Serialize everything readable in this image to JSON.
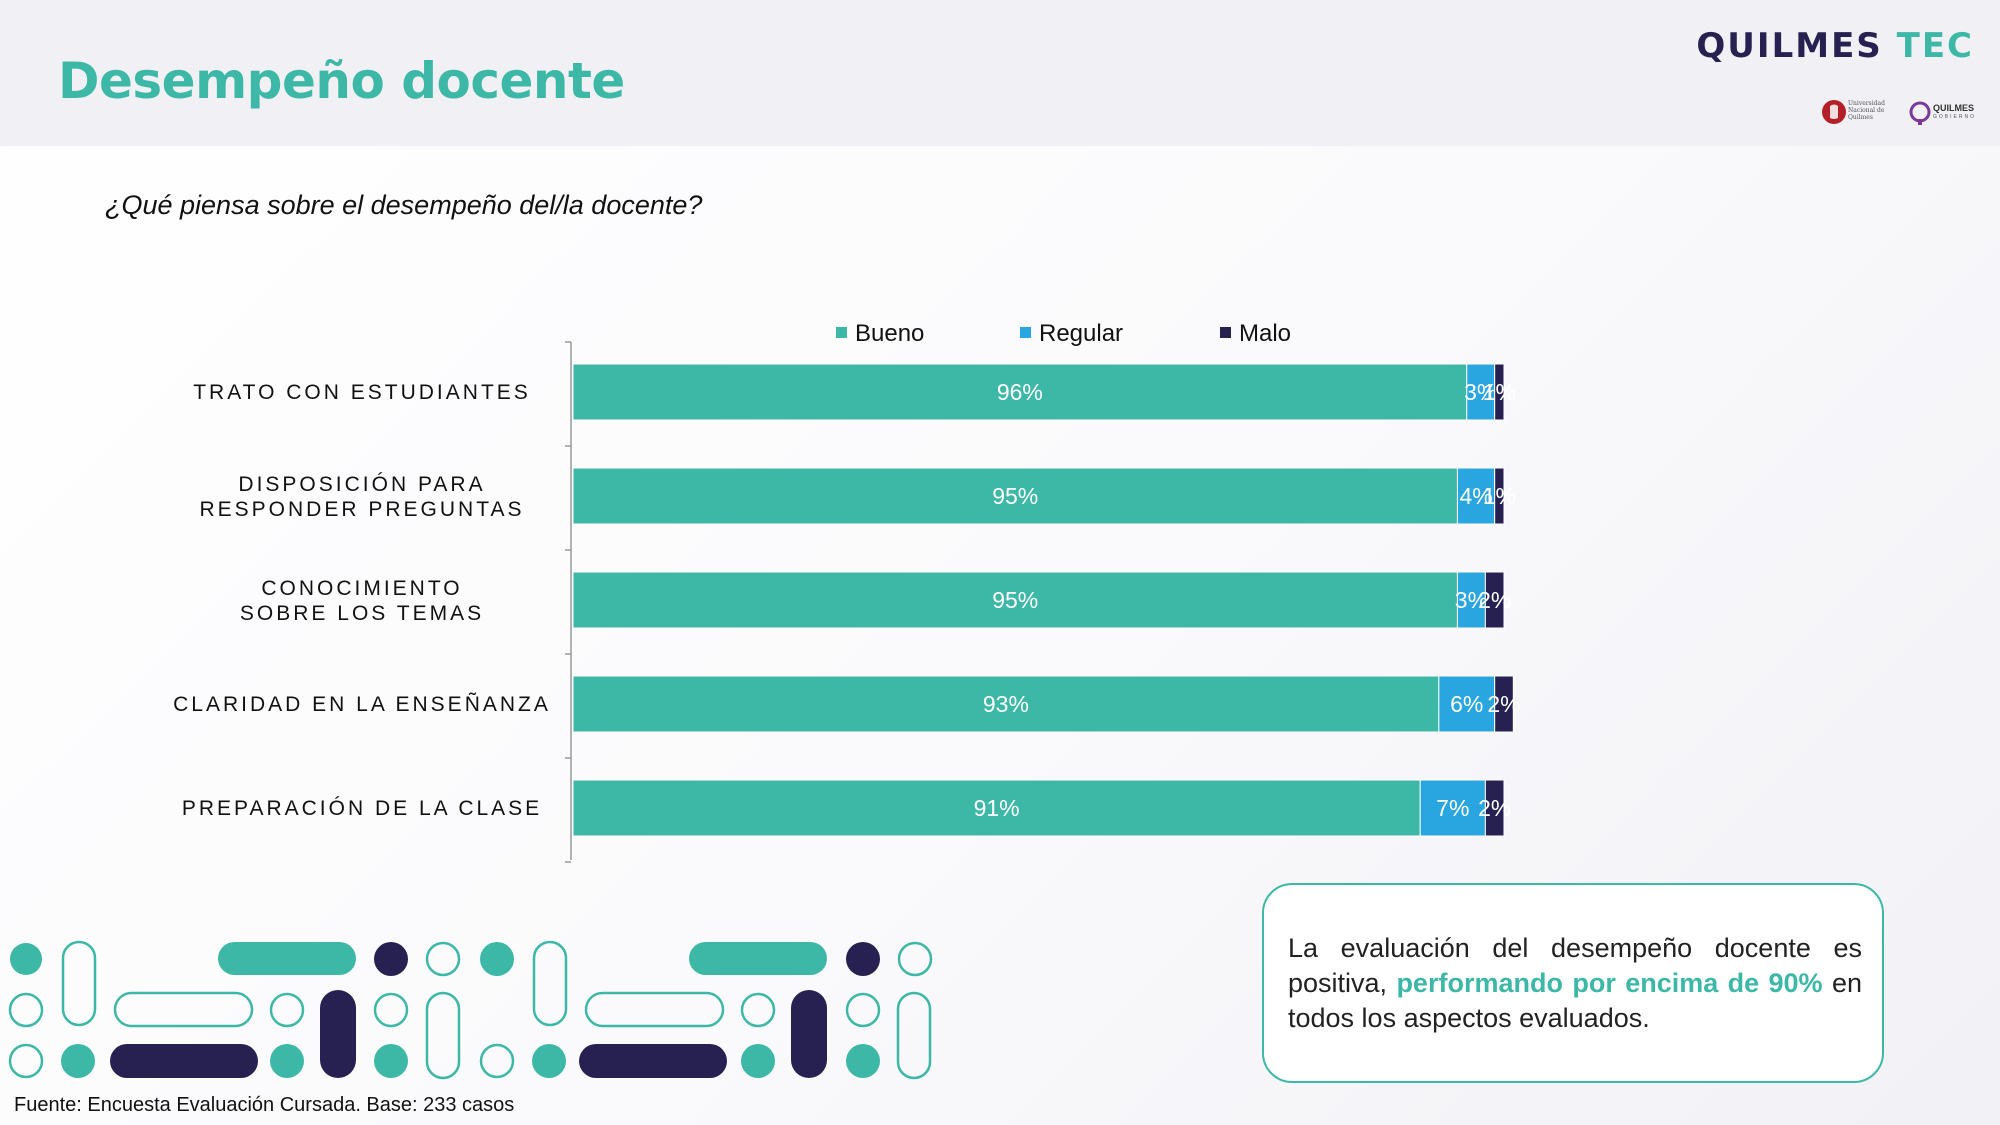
{
  "header": {
    "title": "Desempeño docente",
    "brand_part1": "QUILMES",
    "brand_part2": "TEC",
    "unq_logo_text": "Universidad Nacional de Quilmes",
    "qg_logo_text1": "QUILMES",
    "qg_logo_text2": "GOBIERNO"
  },
  "question": "¿Qué piensa sobre el desempeño del/la docente?",
  "chart_data": {
    "type": "bar",
    "orientation": "horizontal",
    "stacked": true,
    "categories": [
      "TRATO CON ESTUDIANTES",
      "DISPOSICIÓN PARA RESPONDER PREGUNTAS",
      "CONOCIMIENTO SOBRE LOS TEMAS",
      "CLARIDAD EN LA ENSEÑANZA",
      "PREPARACIÓN DE LA CLASE"
    ],
    "series": [
      {
        "name": "Bueno",
        "color": "#3db8a7",
        "values": [
          96,
          95,
          95,
          93,
          91
        ],
        "labels": [
          "96%",
          "95%",
          "95%",
          "93%",
          "91%"
        ]
      },
      {
        "name": "Regular",
        "color": "#29a6e0",
        "values": [
          3,
          4,
          3,
          6,
          7
        ],
        "labels": [
          "3%",
          "4%",
          "3%",
          "6%",
          "7%"
        ]
      },
      {
        "name": "Malo",
        "color": "#262150",
        "values": [
          1,
          1,
          2,
          2,
          2
        ],
        "labels": [
          "1%",
          "1%",
          "2%",
          "2%",
          "2%"
        ]
      }
    ],
    "xlim": [
      0,
      100
    ],
    "unit": "%",
    "legend_position": "top",
    "grid": false
  },
  "note": {
    "text_before": "La evaluación del desempeño docente es positiva, ",
    "highlight": "performando por encima de 90%",
    "text_after": " en todos los aspectos evaluados."
  },
  "source": "Fuente: Encuesta Evaluación Cursada. Base: 233 casos"
}
